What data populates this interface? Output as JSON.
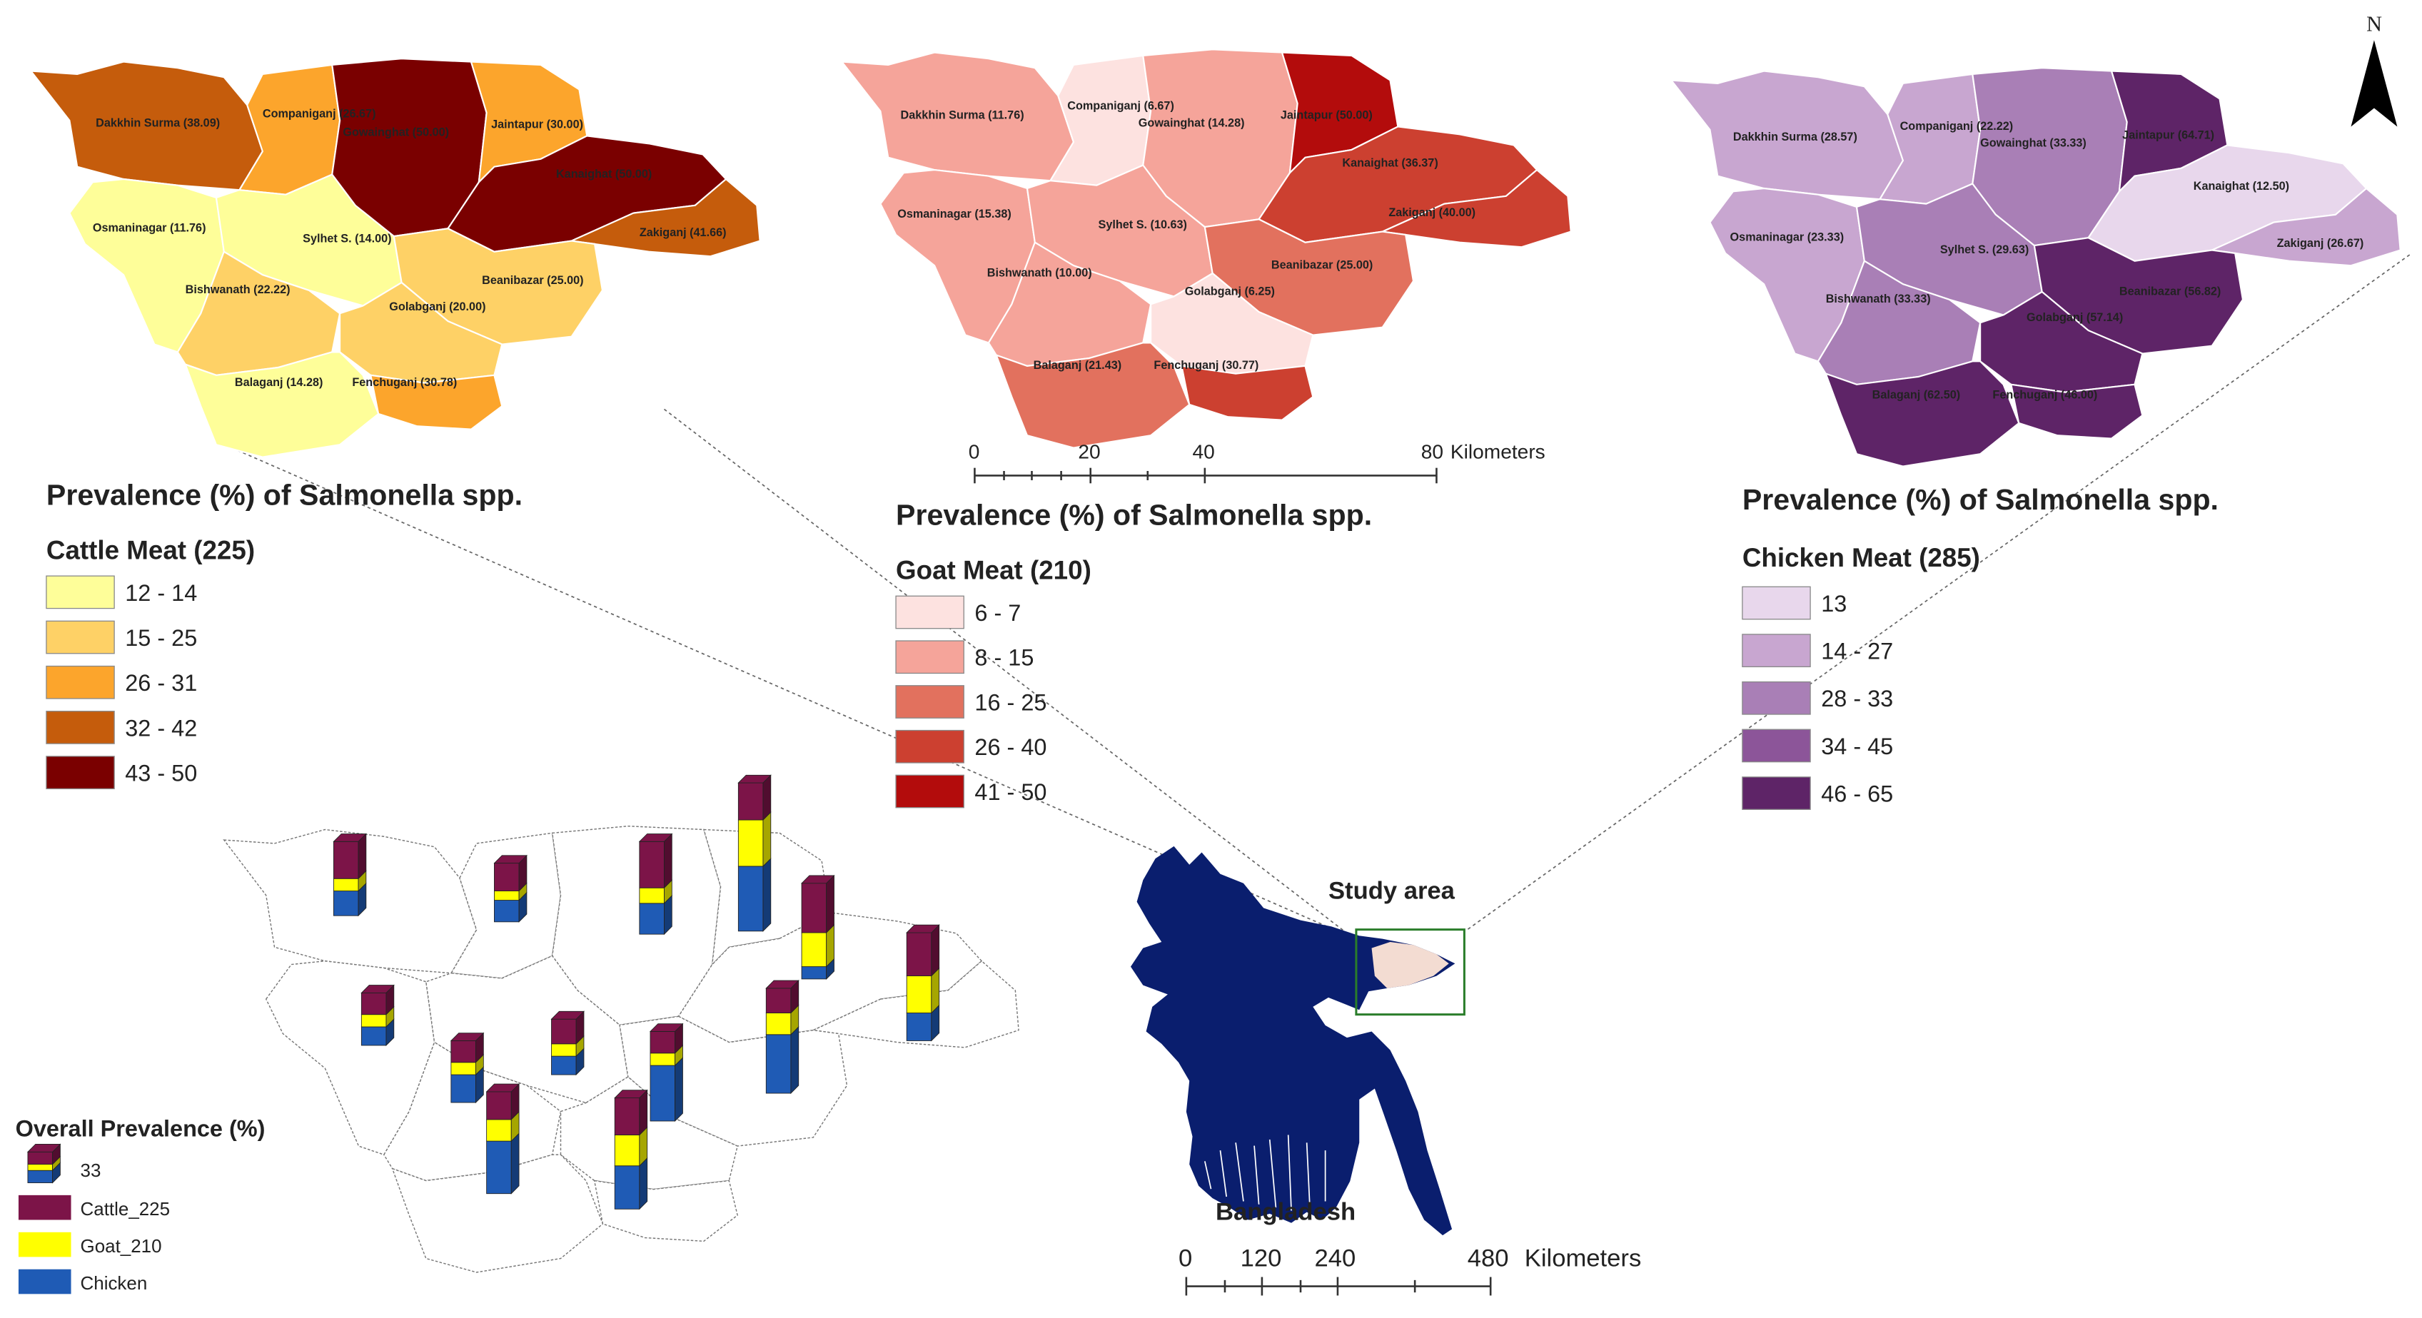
{
  "cattle": {
    "title": "Prevalence (%) of Salmonella spp.",
    "subtitle": "Cattle Meat (225)",
    "legend": [
      {
        "label": "12 - 14",
        "color": "#fefe99"
      },
      {
        "label": "15 - 25",
        "color": "#fed166"
      },
      {
        "label": "26 - 31",
        "color": "#fca52c"
      },
      {
        "label": "32 - 42",
        "color": "#c55c0c"
      },
      {
        "label": "43 - 50",
        "color": "#7a0000"
      }
    ],
    "districts": [
      {
        "label": "Dakkhin Surma (38.09)"
      },
      {
        "label": "Companiganj (26.67)"
      },
      {
        "label": "Gowainghat (50.00)"
      },
      {
        "label": "Jaintapur (30.00)"
      },
      {
        "label": "Kanaighat (50.00)"
      },
      {
        "label": "Zakiganj (41.66)"
      },
      {
        "label": "Osmaninagar (11.76)"
      },
      {
        "label": "Sylhet S. (14.00)"
      },
      {
        "label": "Bishwanath (22.22)"
      },
      {
        "label": "Beanibazar (25.00)"
      },
      {
        "label": "Golabganj (20.00)"
      },
      {
        "label": "Balaganj (14.28)"
      },
      {
        "label": "Fenchuganj (30.78)"
      }
    ]
  },
  "goat": {
    "title": "Prevalence (%) of Salmonella spp.",
    "subtitle": "Goat Meat (210)",
    "legend": [
      {
        "label": "6 - 7",
        "color": "#fde2e0"
      },
      {
        "label": "8 - 15",
        "color": "#f5a49a"
      },
      {
        "label": "16 - 25",
        "color": "#e2715e"
      },
      {
        "label": "26 - 40",
        "color": "#cc4030"
      },
      {
        "label": "41 - 50",
        "color": "#b30c0c"
      }
    ],
    "districts": [
      {
        "label": "Dakkhin Surma (11.76)"
      },
      {
        "label": "Companiganj (6.67)"
      },
      {
        "label": "Gowainghat (14.28)"
      },
      {
        "label": "Jaintapur (50.00)"
      },
      {
        "label": "Kanaighat (36.37)"
      },
      {
        "label": "Zakiganj (40.00)"
      },
      {
        "label": "Osmaninagar (15.38)"
      },
      {
        "label": "Sylhet S. (10.63)"
      },
      {
        "label": "Beanibazar (25.00)"
      },
      {
        "label": "Bishwanath (10.00)"
      },
      {
        "label": "Golabganj (6.25)"
      },
      {
        "label": "Balaganj (21.43)"
      },
      {
        "label": "Fenchuganj (30.77)"
      }
    ],
    "scale": {
      "ticks": [
        "0",
        "20",
        "40",
        "80"
      ],
      "unit": "Kilometers"
    }
  },
  "chicken": {
    "title": "Prevalence (%) of Salmonella spp.",
    "subtitle": "Chicken Meat (285)",
    "legend": [
      {
        "label": "13",
        "color": "#e8d7ec"
      },
      {
        "label": "14 - 27",
        "color": "#c8a6d0"
      },
      {
        "label": "28 - 33",
        "color": "#a97fb6"
      },
      {
        "label": "34 - 45",
        "color": "#8c5599"
      },
      {
        "label": "46 - 65",
        "color": "#5e2467"
      }
    ],
    "districts": [
      {
        "label": "Dakkhin Surma (28.57)"
      },
      {
        "label": "Companiganj (22.22)"
      },
      {
        "label": "Gowainghat (33.33)"
      },
      {
        "label": "Jaintapur (64.71)"
      },
      {
        "label": "Kanaighat (12.50)"
      },
      {
        "label": "Zakiganj (26.67)"
      },
      {
        "label": "Osmaninagar (23.33)"
      },
      {
        "label": "Sylhet S. (29.63)"
      },
      {
        "label": "Beanibazar (56.82)"
      },
      {
        "label": "Bishwanath (33.33)"
      },
      {
        "label": "Golabganj (57.14)"
      },
      {
        "label": "Balaganj (62.50)"
      },
      {
        "label": "Fenchuganj (46.00)"
      }
    ]
  },
  "overall": {
    "title": "Overall Prevalence (%)",
    "sample_value": "33",
    "legend": [
      {
        "label": "Cattle_225",
        "color": "#7c1448"
      },
      {
        "label": "Goat_210",
        "color": "#ffff00"
      },
      {
        "label": "Chicken",
        "color": "#1f5bb5"
      }
    ]
  },
  "bangladesh": {
    "study_area_label": "Study area",
    "country_label": "Bangladesh",
    "scale": {
      "ticks": [
        "0",
        "120",
        "240",
        "480"
      ],
      "unit": "Kilometers"
    },
    "country_color": "#0a1e6e",
    "study_area_fill": "#f3dcd2",
    "study_box_color": "#2a7d2a"
  },
  "north_arrow": {
    "label": "N"
  }
}
